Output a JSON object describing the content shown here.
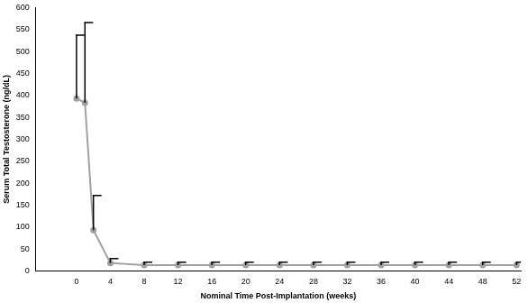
{
  "chart_data": {
    "type": "line",
    "x_label": "Nominal Time Post-Implantation (weeks)",
    "y_label": "Serum Total Testosterone (ng/dL)",
    "x": [
      0,
      1,
      2,
      4,
      8,
      12,
      16,
      20,
      24,
      28,
      32,
      36,
      40,
      44,
      48,
      52
    ],
    "series": [
      {
        "color": "#a0a0a0",
        "marker": "circle",
        "line_style": "solid",
        "values": [
          393,
          383,
          93,
          18,
          13,
          13,
          13,
          13,
          13,
          13,
          13,
          13,
          13,
          13,
          13,
          13
        ],
        "errors": [
          144,
          183,
          79,
          10,
          7,
          7,
          7,
          7,
          7,
          7,
          7,
          7,
          7,
          7,
          7,
          7
        ]
      }
    ],
    "xlim": [
      -4.8,
      52.5
    ],
    "xticks": [
      0,
      4,
      8,
      12,
      16,
      20,
      24,
      28,
      32,
      36,
      40,
      44,
      48,
      52
    ],
    "ylim": [
      0,
      600
    ],
    "yticks": [
      0,
      50,
      100,
      150,
      200,
      250,
      300,
      350,
      400,
      450,
      500,
      550,
      600
    ],
    "grid": false
  }
}
